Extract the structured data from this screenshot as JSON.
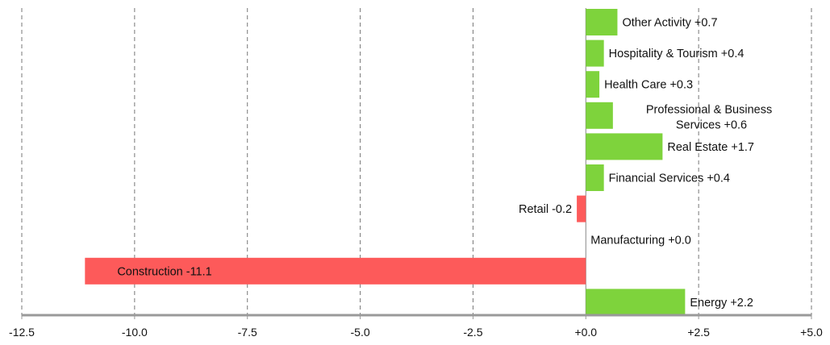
{
  "chart_data": {
    "type": "bar",
    "orientation": "horizontal",
    "categories": [
      "Other Activity",
      "Hospitality & Tourism",
      "Health Care",
      "Professional & Business Services",
      "Real Estate",
      "Financial Services",
      "Retail",
      "Manufacturing",
      "Construction",
      "Energy"
    ],
    "values": [
      0.7,
      0.4,
      0.3,
      0.6,
      1.7,
      0.4,
      -0.2,
      0.0,
      -11.1,
      2.2
    ],
    "labels": [
      "Other Activity +0.7",
      "Hospitality & Tourism +0.4",
      "Health Care +0.3",
      "Professional & Business Services +0.6",
      "Real Estate +1.7",
      "Financial Services +0.4",
      "Retail -0.2",
      "Manufacturing +0.0",
      "Construction -11.1",
      "Energy +2.2"
    ],
    "xlim": [
      -12.5,
      5.0
    ],
    "xticks": [
      -12.5,
      -10.0,
      -7.5,
      -5.0,
      -2.5,
      0.0,
      2.5,
      5.0
    ],
    "xtick_labels": [
      "-12.5",
      "-10.0",
      "-7.5",
      "-5.0",
      "-2.5",
      "+0.0",
      "+2.5",
      "+5.0"
    ],
    "grid": true,
    "colors": {
      "positive": "#7ed33c",
      "negative": "#fd5a5a"
    },
    "title": "",
    "xlabel": "",
    "ylabel": ""
  }
}
